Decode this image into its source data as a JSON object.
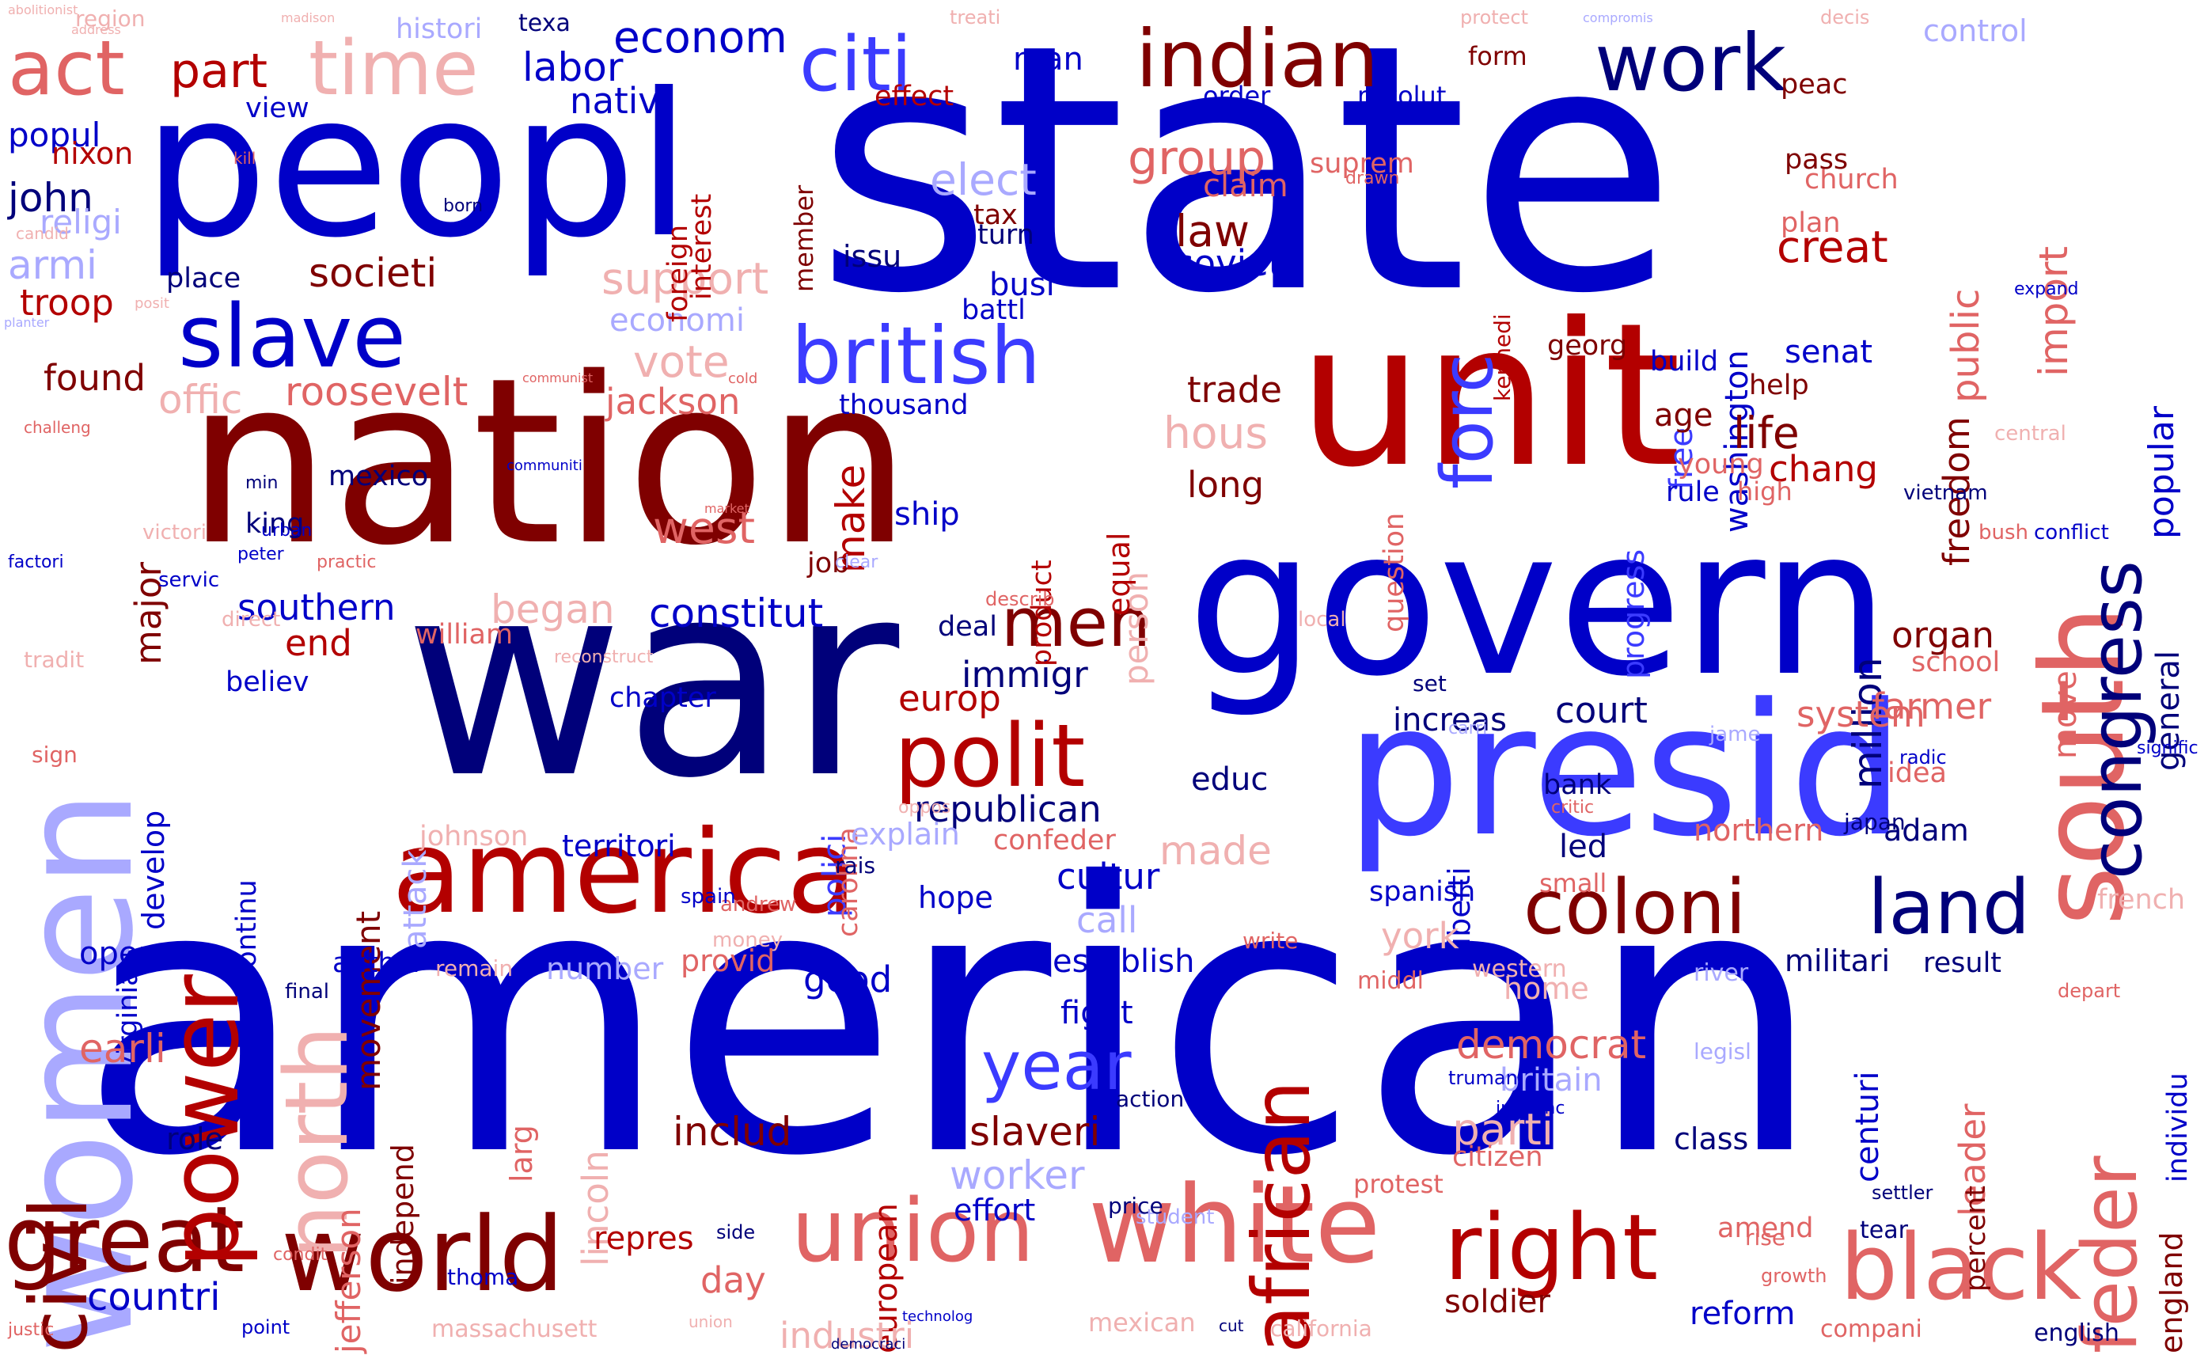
{
  "palette": {
    "navy": "#00007a",
    "blue": "#0000c8",
    "mid_blue": "#3b3bff",
    "light_blue": "#a9a9ff",
    "dark_red": "#7f0000",
    "red": "#b30000",
    "salmon": "#e06464",
    "pink": "#f0b0b0"
  },
  "words": [
    {
      "text": "american",
      "color": "blue"
    },
    {
      "text": "state",
      "color": "blue"
    },
    {
      "text": "war",
      "color": "navy"
    },
    {
      "text": "nation",
      "color": "dark_red"
    },
    {
      "text": "unit",
      "color": "red"
    },
    {
      "text": "govern",
      "color": "blue"
    },
    {
      "text": "peopl",
      "color": "blue"
    },
    {
      "text": "presid",
      "color": "mid_blue"
    },
    {
      "text": "women",
      "color": "light_blue"
    },
    {
      "text": "america",
      "color": "red"
    },
    {
      "text": "south",
      "color": "salmon"
    },
    {
      "text": "white",
      "color": "salmon"
    },
    {
      "text": "world",
      "color": "dark_red"
    },
    {
      "text": "great",
      "color": "dark_red"
    },
    {
      "text": "power",
      "color": "red"
    },
    {
      "text": "right",
      "color": "red"
    },
    {
      "text": "black",
      "color": "salmon"
    },
    {
      "text": "union",
      "color": "salmon"
    },
    {
      "text": "polit",
      "color": "red"
    },
    {
      "text": "african",
      "color": "red"
    },
    {
      "text": "civil",
      "color": "dark_red"
    },
    {
      "text": "north",
      "color": "pink"
    },
    {
      "text": "slave",
      "color": "blue"
    },
    {
      "text": "british",
      "color": "mid_blue"
    },
    {
      "text": "indian",
      "color": "dark_red"
    },
    {
      "text": "citi",
      "color": "mid_blue"
    },
    {
      "text": "time",
      "color": "pink"
    },
    {
      "text": "act",
      "color": "salmon"
    },
    {
      "text": "work",
      "color": "navy"
    },
    {
      "text": "congress",
      "color": "navy"
    },
    {
      "text": "feder",
      "color": "salmon"
    },
    {
      "text": "coloni",
      "color": "dark_red"
    },
    {
      "text": "land",
      "color": "navy"
    },
    {
      "text": "forc",
      "color": "mid_blue"
    },
    {
      "text": "men",
      "color": "dark_red"
    },
    {
      "text": "year",
      "color": "mid_blue"
    },
    {
      "text": "part",
      "color": "red"
    },
    {
      "text": "labor",
      "color": "blue"
    },
    {
      "text": "econom",
      "color": "blue"
    },
    {
      "text": "nativ",
      "color": "blue"
    },
    {
      "text": "public",
      "color": "salmon"
    },
    {
      "text": "import",
      "color": "salmon"
    },
    {
      "text": "popular",
      "color": "blue"
    },
    {
      "text": "group",
      "color": "salmon"
    },
    {
      "text": "elect",
      "color": "light_blue"
    },
    {
      "text": "law",
      "color": "dark_red"
    },
    {
      "text": "creat",
      "color": "red"
    },
    {
      "text": "freedom",
      "color": "dark_red"
    },
    {
      "text": "soviet",
      "color": "blue"
    },
    {
      "text": "washington",
      "color": "blue"
    },
    {
      "text": "societi",
      "color": "dark_red"
    },
    {
      "text": "support",
      "color": "pink"
    },
    {
      "text": "economi",
      "color": "light_blue"
    },
    {
      "text": "vote",
      "color": "pink"
    },
    {
      "text": "jackson",
      "color": "salmon"
    },
    {
      "text": "thousand",
      "color": "blue"
    },
    {
      "text": "trade",
      "color": "dark_red"
    },
    {
      "text": "found",
      "color": "dark_red"
    },
    {
      "text": "troop",
      "color": "red"
    },
    {
      "text": "armi",
      "color": "light_blue"
    },
    {
      "text": "john",
      "color": "navy"
    },
    {
      "text": "religi",
      "color": "light_blue"
    },
    {
      "text": "popul",
      "color": "blue"
    },
    {
      "text": "nixon",
      "color": "red"
    },
    {
      "text": "roosevelt",
      "color": "salmon"
    },
    {
      "text": "offic",
      "color": "pink"
    },
    {
      "text": "major",
      "color": "dark_red"
    },
    {
      "text": "mexico",
      "color": "navy"
    },
    {
      "text": "west",
      "color": "salmon"
    },
    {
      "text": "make",
      "color": "red"
    },
    {
      "text": "ship",
      "color": "blue"
    },
    {
      "text": "hous",
      "color": "pink"
    },
    {
      "text": "long",
      "color": "dark_red"
    },
    {
      "text": "life",
      "color": "dark_red"
    },
    {
      "text": "free",
      "color": "mid_blue"
    },
    {
      "text": "age",
      "color": "dark_red"
    },
    {
      "text": "chang",
      "color": "red"
    },
    {
      "text": "rule",
      "color": "blue"
    },
    {
      "text": "progress",
      "color": "mid_blue"
    },
    {
      "text": "million",
      "color": "navy"
    },
    {
      "text": "senat",
      "color": "blue"
    },
    {
      "text": "build",
      "color": "blue"
    },
    {
      "text": "help",
      "color": "dark_red"
    },
    {
      "text": "young",
      "color": "salmon"
    },
    {
      "text": "general",
      "color": "navy"
    },
    {
      "text": "organ",
      "color": "dark_red"
    },
    {
      "text": "school",
      "color": "salmon"
    },
    {
      "text": "farmer",
      "color": "salmon"
    },
    {
      "text": "system",
      "color": "salmon"
    },
    {
      "text": "move",
      "color": "salmon"
    },
    {
      "text": "southern",
      "color": "blue"
    },
    {
      "text": "constitut",
      "color": "blue"
    },
    {
      "text": "began",
      "color": "pink"
    },
    {
      "text": "end",
      "color": "red"
    },
    {
      "text": "william",
      "color": "salmon"
    },
    {
      "text": "believ",
      "color": "blue"
    },
    {
      "text": "develop",
      "color": "blue"
    },
    {
      "text": "virginia",
      "color": "blue"
    },
    {
      "text": "movement",
      "color": "dark_red"
    },
    {
      "text": "attack",
      "color": "light_blue"
    },
    {
      "text": "continu",
      "color": "blue"
    },
    {
      "text": "immigr",
      "color": "navy"
    },
    {
      "text": "europ",
      "color": "red"
    },
    {
      "text": "polici",
      "color": "mid_blue"
    },
    {
      "text": "carolina",
      "color": "salmon"
    },
    {
      "text": "republican",
      "color": "navy"
    },
    {
      "text": "educ",
      "color": "navy"
    },
    {
      "text": "made",
      "color": "pink"
    },
    {
      "text": "cultur",
      "color": "blue"
    },
    {
      "text": "call",
      "color": "light_blue"
    },
    {
      "text": "establish",
      "color": "blue"
    },
    {
      "text": "court",
      "color": "navy"
    },
    {
      "text": "increas",
      "color": "navy"
    },
    {
      "text": "liberti",
      "color": "blue"
    },
    {
      "text": "led",
      "color": "navy"
    },
    {
      "text": "spanish",
      "color": "blue"
    },
    {
      "text": "york",
      "color": "pink"
    },
    {
      "text": "bank",
      "color": "navy"
    },
    {
      "text": "northern",
      "color": "salmon"
    },
    {
      "text": "adam",
      "color": "navy"
    },
    {
      "text": "idea",
      "color": "salmon"
    },
    {
      "text": "militari",
      "color": "navy"
    },
    {
      "text": "result",
      "color": "navy"
    },
    {
      "text": "leader",
      "color": "salmon"
    },
    {
      "text": "individu",
      "color": "blue"
    },
    {
      "text": "territori",
      "color": "blue"
    },
    {
      "text": "explain",
      "color": "light_blue"
    },
    {
      "text": "confeder",
      "color": "salmon"
    },
    {
      "text": "johnson",
      "color": "pink"
    },
    {
      "text": "number",
      "color": "light_blue"
    },
    {
      "text": "provid",
      "color": "salmon"
    },
    {
      "text": "open",
      "color": "blue"
    },
    {
      "text": "author",
      "color": "blue"
    },
    {
      "text": "good",
      "color": "blue"
    },
    {
      "text": "hope",
      "color": "blue"
    },
    {
      "text": "earli",
      "color": "salmon"
    },
    {
      "text": "fight",
      "color": "blue"
    },
    {
      "text": "democrat",
      "color": "salmon"
    },
    {
      "text": "britain",
      "color": "light_blue"
    },
    {
      "text": "parti",
      "color": "pink"
    },
    {
      "text": "centuri",
      "color": "blue"
    },
    {
      "text": "includ",
      "color": "dark_red"
    },
    {
      "text": "slaveri",
      "color": "dark_red"
    },
    {
      "text": "european",
      "color": "red"
    },
    {
      "text": "worker",
      "color": "light_blue"
    },
    {
      "text": "role",
      "color": "navy"
    },
    {
      "text": "jefferson",
      "color": "salmon"
    },
    {
      "text": "independ",
      "color": "dark_red"
    },
    {
      "text": "larg",
      "color": "salmon"
    },
    {
      "text": "lincoln",
      "color": "pink"
    },
    {
      "text": "class",
      "color": "navy"
    },
    {
      "text": "percent",
      "color": "dark_red"
    },
    {
      "text": "citizen",
      "color": "salmon"
    },
    {
      "text": "effort",
      "color": "blue"
    },
    {
      "text": "repres",
      "color": "red"
    },
    {
      "text": "day",
      "color": "salmon"
    },
    {
      "text": "industri",
      "color": "pink"
    },
    {
      "text": "soldier",
      "color": "dark_red"
    },
    {
      "text": "reform",
      "color": "blue"
    },
    {
      "text": "countri",
      "color": "blue"
    },
    {
      "text": "england",
      "color": "dark_red"
    },
    {
      "text": "english",
      "color": "navy"
    },
    {
      "text": "compani",
      "color": "salmon"
    },
    {
      "text": "mexican",
      "color": "pink"
    },
    {
      "text": "california",
      "color": "pink"
    },
    {
      "text": "massachusett",
      "color": "pink"
    },
    {
      "text": "histori",
      "color": "light_blue"
    },
    {
      "text": "texa",
      "color": "navy"
    },
    {
      "text": "man",
      "color": "blue"
    },
    {
      "text": "form",
      "color": "dark_red"
    },
    {
      "text": "peac",
      "color": "dark_red"
    },
    {
      "text": "order",
      "color": "blue"
    },
    {
      "text": "revolut",
      "color": "blue"
    },
    {
      "text": "effect",
      "color": "red"
    },
    {
      "text": "interest",
      "color": "red"
    },
    {
      "text": "member",
      "color": "dark_red"
    },
    {
      "text": "foreign",
      "color": "red"
    },
    {
      "text": "suprem",
      "color": "salmon"
    },
    {
      "text": "church",
      "color": "salmon"
    },
    {
      "text": "plan",
      "color": "salmon"
    },
    {
      "text": "pass",
      "color": "dark_red"
    },
    {
      "text": "tax",
      "color": "dark_red"
    },
    {
      "text": "turn",
      "color": "navy"
    },
    {
      "text": "busi",
      "color": "blue"
    },
    {
      "text": "battl",
      "color": "blue"
    },
    {
      "text": "issu",
      "color": "navy"
    },
    {
      "text": "place",
      "color": "navy"
    },
    {
      "text": "view",
      "color": "blue"
    },
    {
      "text": "kennedi",
      "color": "red"
    },
    {
      "text": "chapter",
      "color": "blue"
    },
    {
      "text": "king",
      "color": "navy"
    },
    {
      "text": "job",
      "color": "dark_red"
    },
    {
      "text": "deal",
      "color": "navy"
    },
    {
      "text": "georg",
      "color": "dark_red"
    },
    {
      "text": "question",
      "color": "salmon"
    },
    {
      "text": "product",
      "color": "red"
    },
    {
      "text": "person",
      "color": "pink"
    },
    {
      "text": "equal",
      "color": "red"
    }
  ]
}
